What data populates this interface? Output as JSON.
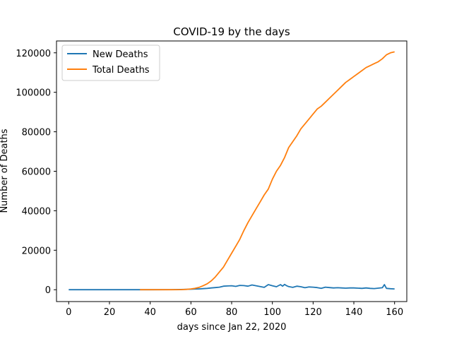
{
  "chart_data": {
    "type": "line",
    "title": "COVID-19 by the days",
    "xlabel": "days since Jan 22, 2020",
    "ylabel": "Number of Deaths",
    "xlim": [
      -6,
      166
    ],
    "ylim": [
      -6000,
      126000
    ],
    "xticks": [
      0,
      20,
      40,
      60,
      80,
      100,
      120,
      140,
      160
    ],
    "yticks": [
      0,
      20000,
      40000,
      60000,
      80000,
      100000,
      120000
    ],
    "grid": false,
    "legend": "top-left",
    "series": [
      {
        "name": "New Deaths",
        "color": "#1f77b4",
        "x": [
          0,
          10,
          20,
          30,
          40,
          50,
          55,
          60,
          62,
          64,
          66,
          68,
          70,
          72,
          74,
          76,
          78,
          80,
          82,
          84,
          86,
          88,
          90,
          92,
          94,
          96,
          98,
          100,
          102,
          104,
          105,
          106,
          107,
          108,
          110,
          112,
          114,
          116,
          118,
          120,
          122,
          124,
          126,
          128,
          130,
          132,
          134,
          136,
          138,
          140,
          142,
          144,
          146,
          148,
          150,
          152,
          154,
          155,
          156,
          158,
          160
        ],
        "y": [
          0,
          0,
          0,
          0,
          20,
          60,
          120,
          250,
          350,
          420,
          550,
          700,
          900,
          1100,
          1300,
          1800,
          1900,
          2000,
          1700,
          2200,
          2100,
          1800,
          2400,
          2000,
          1600,
          1200,
          2600,
          2000,
          1500,
          2600,
          1800,
          2700,
          2000,
          1600,
          1200,
          1800,
          1500,
          1000,
          1400,
          1300,
          1100,
          700,
          1300,
          1100,
          900,
          1000,
          900,
          800,
          900,
          900,
          800,
          700,
          900,
          700,
          600,
          800,
          1000,
          2600,
          700,
          500,
          400
        ]
      },
      {
        "name": "Total Deaths",
        "color": "#ff7f0e",
        "x": [
          35,
          40,
          45,
          50,
          55,
          58,
          60,
          62,
          64,
          66,
          68,
          70,
          72,
          74,
          76,
          78,
          80,
          82,
          84,
          86,
          88,
          90,
          92,
          94,
          96,
          98,
          100,
          102,
          104,
          106,
          108,
          110,
          112,
          114,
          116,
          118,
          120,
          122,
          124,
          126,
          128,
          130,
          132,
          134,
          136,
          138,
          140,
          142,
          144,
          146,
          148,
          150,
          152,
          154,
          155,
          156,
          158,
          160
        ],
        "y": [
          0,
          0,
          0,
          0,
          50,
          200,
          400,
          700,
          1200,
          2000,
          3000,
          4500,
          6500,
          9000,
          11500,
          15000,
          18500,
          22000,
          25500,
          30000,
          34000,
          37500,
          41000,
          44500,
          48000,
          51000,
          56000,
          60000,
          63000,
          67000,
          72000,
          75000,
          78000,
          81500,
          84000,
          86500,
          89000,
          91500,
          93000,
          95000,
          97000,
          99000,
          101000,
          103000,
          105000,
          106500,
          108000,
          109500,
          111000,
          112500,
          113500,
          114500,
          115500,
          117000,
          118000,
          119000,
          120000,
          120500
        ]
      }
    ]
  }
}
